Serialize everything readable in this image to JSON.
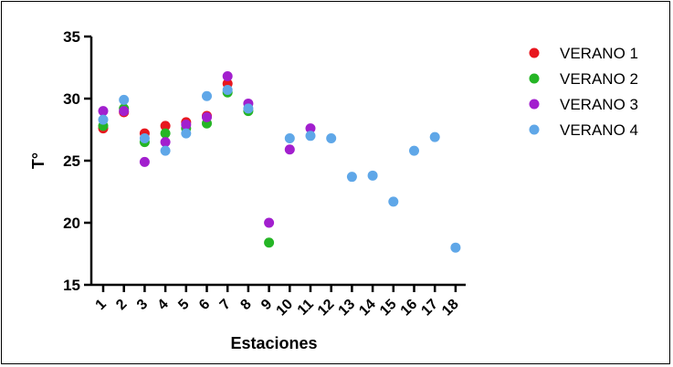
{
  "chart_data": {
    "type": "scatter",
    "xlabel": "Estaciones",
    "ylabel": "T°",
    "ylim": [
      15,
      35
    ],
    "yticks": [
      15,
      20,
      25,
      30,
      35
    ],
    "categories": [
      "1",
      "2",
      "3",
      "4",
      "5",
      "6",
      "7",
      "8",
      "9",
      "10",
      "11",
      "12",
      "13",
      "14",
      "15",
      "16",
      "17",
      "18"
    ],
    "grid": false,
    "legend_position": "right",
    "series": [
      {
        "name": "VERANO 1",
        "color": "#e8171f",
        "values": [
          27.6,
          28.9,
          27.2,
          27.8,
          28.1,
          28.6,
          31.2,
          null,
          null,
          null,
          null,
          null,
          null,
          null,
          null,
          null,
          null,
          null
        ]
      },
      {
        "name": "VERANO 2",
        "color": "#25b525",
        "values": [
          27.8,
          29.2,
          26.5,
          27.2,
          27.6,
          28.0,
          30.5,
          29.0,
          18.4,
          null,
          null,
          null,
          null,
          null,
          null,
          null,
          null,
          null
        ]
      },
      {
        "name": "VERANO 3",
        "color": "#a21fce",
        "values": [
          29.0,
          29.0,
          24.9,
          26.5,
          27.9,
          28.5,
          31.8,
          29.6,
          20.0,
          25.9,
          27.6,
          null,
          null,
          null,
          null,
          null,
          null,
          null
        ]
      },
      {
        "name": "VERANO 4",
        "color": "#5fa7e8",
        "values": [
          28.3,
          29.9,
          26.8,
          25.8,
          27.2,
          30.2,
          30.7,
          29.2,
          null,
          26.8,
          27.0,
          26.8,
          23.7,
          23.8,
          21.7,
          25.8,
          26.9,
          18.0
        ]
      }
    ]
  }
}
